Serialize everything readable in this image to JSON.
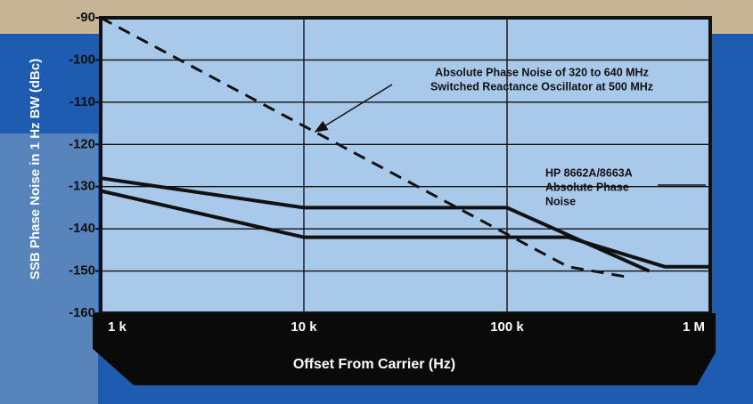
{
  "chart_data": {
    "type": "line",
    "y_label": "SSB Phase Noise in 1 Hz BW (dBc)",
    "x_label": "Offset From Carrier (Hz)",
    "xscale": "log",
    "xlim": [
      1000,
      1000000
    ],
    "xticks": [
      {
        "value": 1000,
        "label": "1 k"
      },
      {
        "value": 10000,
        "label": "10 k"
      },
      {
        "value": 100000,
        "label": "100 k"
      },
      {
        "value": 1000000,
        "label": "1 M"
      }
    ],
    "ylim": [
      -160,
      -90
    ],
    "yticks": [
      -90,
      -100,
      -110,
      -120,
      -130,
      -140,
      -150,
      -160
    ],
    "grid": true,
    "series": [
      {
        "color": "#111111",
        "dashed": true,
        "x": [
          1000,
          200000,
          400000
        ],
        "values": [
          -90,
          -149,
          -151.5
        ]
      },
      {
        "color": "#111111",
        "dashed": false,
        "x": [
          1000,
          10000,
          100000,
          500000
        ],
        "values": [
          -128,
          -135,
          -135,
          -150
        ]
      },
      {
        "color": "#111111",
        "dashed": false,
        "x": [
          1000,
          10000,
          200000,
          600000,
          1000000
        ],
        "values": [
          -131,
          -142,
          -142,
          -149,
          -149
        ]
      }
    ],
    "annotations": [
      {
        "lines": [
          "Absolute Phase Noise of 320 to 640 MHz",
          "Switched Reactance Oscillator at 500 MHz"
        ]
      },
      {
        "lines": [
          "HP 8662A/8663A",
          "Absolute Phase",
          "Noise"
        ]
      }
    ]
  }
}
